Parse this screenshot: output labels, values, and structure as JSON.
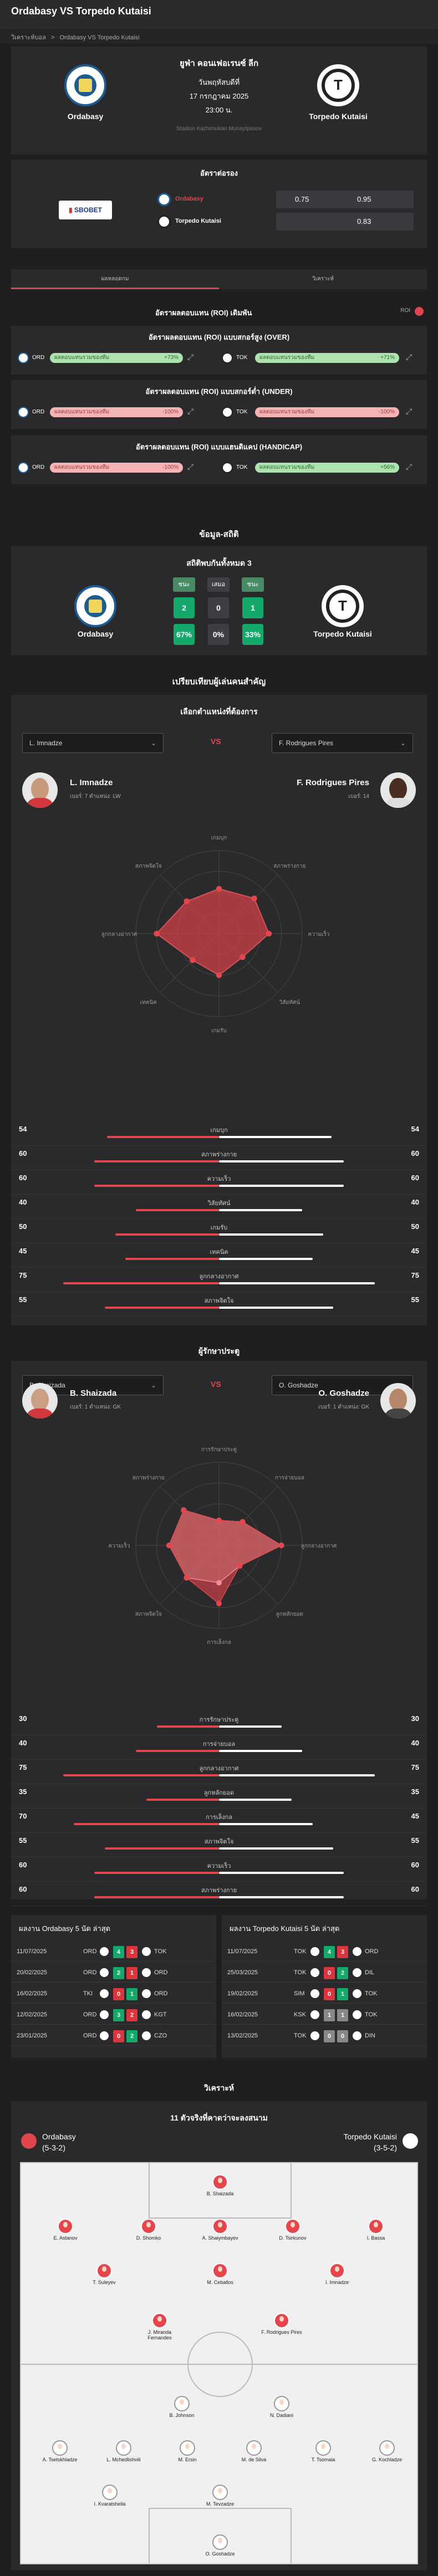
{
  "page": {
    "title": "Ordabasy VS Torpedo Kutaisi"
  },
  "breadcrumb": {
    "home": "วิเคราะห์บอล",
    "sep": ">",
    "current": "Ordabasy VS Torpedo Kutaisi"
  },
  "match": {
    "league": "ยูฟ่า คอนเฟอเรนซ์ ลีก",
    "date1": "วันพฤหัสบดีที่",
    "date2": "17 กรกฎาคม 2025",
    "time": "23:00 น.",
    "stadium": "Stadion Kazhimukan Munaytpasov",
    "home": "Ordabasy",
    "away": "Torpedo Kutaisi"
  },
  "odds": {
    "title": "อัตราต่อรอง",
    "bookmaker": "SBOBET",
    "home_name": "Ordabasy",
    "away_name": "Torpedo Kutaisi",
    "home_line": "0.75",
    "home_odd": "0.95",
    "away_odd": "0.83"
  },
  "tabs": {
    "a": "ผลหลอดกม",
    "b": "วิเคราะห์"
  },
  "roi": {
    "title": "อัตราผลตอบแทน (ROI) เดิมพัน",
    "toggle": "ROI",
    "sections": [
      {
        "title": "อัตราผลตอบแทน (ROI) แบบสกอร์สูง (OVER)",
        "home": "ORD",
        "left_text": "ผลตอบแทนรวมของทีม",
        "left_val": "+73%",
        "away": "TOK",
        "right_text": "ผลตอบแทนรวมของทีม",
        "right_val": "+71%"
      },
      {
        "title": "อัตราผลตอบแทน (ROI) แบบสกอร์ต่ำ (UNDER)",
        "home": "ORD",
        "left_text": "ผลตอบแทนรวมของทีม",
        "left_val": "-100%",
        "away": "TOK",
        "right_text": "ผลตอบแทนรวมของทีม",
        "right_val": "-100%"
      },
      {
        "title": "อัตราผลตอบแทน (ROI) แบบแฮนดิแคป (HANDICAP)",
        "home": "ORD",
        "left_text": "ผลตอบแทนรวมของทีม",
        "left_val": "-100%",
        "away": "TOK",
        "right_text": "ผลตอบแทนรวมของทีม",
        "right_val": "+56%"
      }
    ]
  },
  "h2h": {
    "title": "ข้อมูล-สถิติ",
    "subtitle": "สถิติพบกันทั้งหมด 3",
    "win": "ชนะ",
    "draw": "เสมอ",
    "lose": "ชนะ",
    "home_wins": "2",
    "draws": "0",
    "away_wins": "1",
    "home_pct": "67%",
    "draw_pct": "0%",
    "away_pct": "33%",
    "home": "Ordabasy",
    "away": "Torpedo Kutaisi"
  },
  "compare": {
    "title": "เปรียบเทียบผู้เล่นคนสำคัญ",
    "pick_title": "เลือกตำแหน่งที่ต้องการ"
  },
  "p1": {
    "left_sel": "L. Imnadze",
    "right_sel": "F. Rodrigues Pires",
    "vs": "VS",
    "left_name": "L. Imnadze",
    "left_meta": "เบอร์: 7  ตำแหน่ง: LW",
    "right_name": "F. Rodrigues Pires",
    "right_meta": "เบอร์: 14",
    "axes": [
      "เกมบุก",
      "สภาพร่างกาย",
      "ความเร็ว",
      "วิสัยทัศน์",
      "เกมรับ",
      "เทคนิค",
      "ลูกกลางอากาศ",
      "สภาพจิตใจ"
    ],
    "stats": [
      {
        "label": "เกมบุก",
        "l": "54",
        "r": "54",
        "lf": 0.54,
        "rf": 0.54
      },
      {
        "label": "สภาพร่างกาย",
        "l": "60",
        "r": "60",
        "lf": 0.6,
        "rf": 0.6
      },
      {
        "label": "ความเร็ว",
        "l": "60",
        "r": "60",
        "lf": 0.6,
        "rf": 0.6
      },
      {
        "label": "วิสัยทัศน์",
        "l": "40",
        "r": "40",
        "lf": 0.4,
        "rf": 0.4
      },
      {
        "label": "เกมรับ",
        "l": "50",
        "r": "50",
        "lf": 0.5,
        "rf": 0.5
      },
      {
        "label": "เทคนิค",
        "l": "45",
        "r": "45",
        "lf": 0.45,
        "rf": 0.45
      },
      {
        "label": "ลูกกลางอากาศ",
        "l": "75",
        "r": "75",
        "lf": 0.75,
        "rf": 0.75
      },
      {
        "label": "สภาพจิตใจ",
        "l": "55",
        "r": "55",
        "lf": 0.55,
        "rf": 0.55
      }
    ]
  },
  "gk": {
    "title": "ผู้รักษาประตู",
    "left_sel": "B. Shaizada",
    "right_sel": "O. Goshadze",
    "vs": "VS",
    "left_name": "B. Shaizada",
    "left_meta": "เบอร์: 1  ตำแหน่ง: GK",
    "right_name": "O. Goshadze",
    "right_meta": "เบอร์: 1  ตำแหน่ง: GK",
    "axes": [
      "การรักษาประตู",
      "การจ่ายบอล",
      "ลูกกลางอากาศ",
      "ลูกหลักยอด",
      "การเล็งกล",
      "สภาพจิตใจ",
      "ความเร็ว",
      "สภาพร่างกาย"
    ],
    "stats": [
      {
        "label": "การรักษาประตู",
        "l": "30",
        "r": "30",
        "lf": 0.3,
        "rf": 0.3
      },
      {
        "label": "การจ่ายบอล",
        "l": "40",
        "r": "40",
        "lf": 0.4,
        "rf": 0.4
      },
      {
        "label": "ลูกกลางอากาศ",
        "l": "75",
        "r": "75",
        "lf": 0.75,
        "rf": 0.75
      },
      {
        "label": "ลูกหลักยอด",
        "l": "35",
        "r": "35",
        "lf": 0.35,
        "rf": 0.35
      },
      {
        "label": "การเล็งกล",
        "l": "70",
        "r": "45",
        "lf": 0.7,
        "rf": 0.45
      },
      {
        "label": "สภาพจิตใจ",
        "l": "55",
        "r": "55",
        "lf": 0.55,
        "rf": 0.55
      },
      {
        "label": "ความเร็ว",
        "l": "60",
        "r": "60",
        "lf": 0.6,
        "rf": 0.6
      },
      {
        "label": "สภาพร่างกาย",
        "l": "60",
        "r": "60",
        "lf": 0.6,
        "rf": 0.6
      }
    ]
  },
  "form": {
    "left_title": "ผลงาน Ordabasy 5 นัด ล่าสุด",
    "right_title": "ผลงาน Torpedo Kutaisi 5 นัด ล่าสุด",
    "left": [
      {
        "d": "11/07/2025",
        "a": "ORD",
        "s1": "4",
        "s2": "3",
        "b": "TOK"
      },
      {
        "d": "20/02/2025",
        "a": "ORD",
        "s1": "2",
        "s2": "1",
        "b": "ORD"
      },
      {
        "d": "16/02/2025",
        "a": "TKI",
        "s1": "0",
        "s2": "1",
        "b": "ORD"
      },
      {
        "d": "12/02/2025",
        "a": "ORD",
        "s1": "3",
        "s2": "2",
        "b": "KGT"
      },
      {
        "d": "23/01/2025",
        "a": "ORD",
        "s1": "0",
        "s2": "2",
        "b": "CZO"
      }
    ],
    "right": [
      {
        "d": "11/07/2025",
        "a": "TOK",
        "s1": "4",
        "s2": "3",
        "b": "ORD"
      },
      {
        "d": "25/03/2025",
        "a": "TOK",
        "s1": "0",
        "s2": "2",
        "b": "DIL"
      },
      {
        "d": "19/02/2025",
        "a": "SIM",
        "s1": "0",
        "s2": "1",
        "b": "TOK"
      },
      {
        "d": "16/02/2025",
        "a": "KSK",
        "s1": "1",
        "s2": "1",
        "b": "TOK"
      },
      {
        "d": "13/02/2025",
        "a": "TOK",
        "s1": "0",
        "s2": "0",
        "b": "DIN"
      }
    ]
  },
  "lineup": {
    "section": "วิเคราะห์",
    "title": "11 ตัวจริงที่คาดว่าจะลงสนาม",
    "home": "Ordabasy",
    "home_form": "(5-3-2)",
    "away": "Torpedo Kutaisi",
    "away_form": "(3-5-2)",
    "players": [
      "B. Shaizada",
      "E. Astanov",
      "D. Shomko",
      "A. Shaiymbayev",
      "D. Tsirkunov",
      "I. Bassa",
      "T. Suleyev",
      "M. Ceballos",
      "I. Imnadze",
      "J. Miranda Fernandes",
      "F. Rodrigues Pires",
      "B. Johnson",
      "N. Dadiani",
      "A. Tsetskhladze",
      "L. Mchedlishvili",
      "M. Ersin",
      "M. de Silva",
      "T. Tsomaia",
      "G. Kochladze",
      "I. Kvaratshelia",
      "M. Tevzadze",
      "O. Goshadze"
    ]
  }
}
